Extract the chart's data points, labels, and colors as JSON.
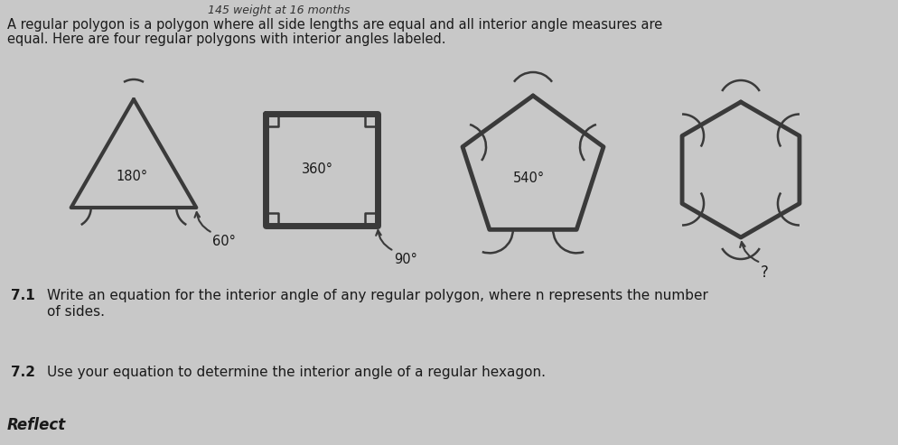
{
  "bg_color": "#c8c8c8",
  "paper_color": "#e8e8e8",
  "handwritten_text": "145 weight at 16 months",
  "title_line1": "A regular polygon is a polygon where all side lengths are equal and all interior angle measures are",
  "title_line2": "equal. Here are four regular polygons with interior angles labeled.",
  "polygon1_label_top": "180°",
  "polygon1_label_bot": "60°",
  "polygon2_label_top": "360°",
  "polygon2_label_bot": "90°",
  "polygon3_label_top": "540°",
  "polygon4_label_bot": "?",
  "q71_num": "7.1",
  "q71_text": "Write an equation for the interior angle of any regular polygon, where n represents the number",
  "q71_text2": "of sides.",
  "q72_num": "7.2",
  "q72_text": "Use your equation to determine the interior angle of a regular hexagon.",
  "reflect": "Reflect",
  "text_color": "#1a1a1a",
  "polygon_color": "#3a3a3a",
  "font_size_title": 10.5,
  "font_size_label": 10.5,
  "font_size_q": 11,
  "font_size_reflect": 12
}
